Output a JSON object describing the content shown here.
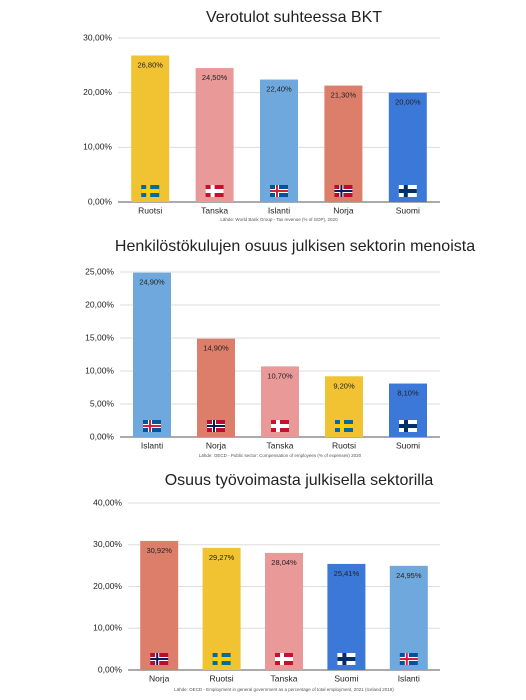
{
  "chart_data": [
    {
      "type": "bar",
      "title": "Verotulot suhteessa BKT",
      "categories": [
        "Ruotsi",
        "Tanska",
        "Islanti",
        "Norja",
        "Suomi"
      ],
      "values": [
        26.8,
        24.5,
        22.4,
        21.3,
        20.0
      ],
      "value_labels": [
        "26,80%",
        "24,50%",
        "22,40%",
        "21,30%",
        "20,00%"
      ],
      "colors": [
        "#f1c232",
        "#ea9999",
        "#6fa8dc",
        "#dd7e6b",
        "#3c78d8"
      ],
      "ylim": [
        0,
        30
      ],
      "yticks": [
        {
          "value": 0,
          "label": "0,00%"
        },
        {
          "value": 10,
          "label": "10,00%"
        },
        {
          "value": 20,
          "label": "20,00%"
        },
        {
          "value": 30,
          "label": "30,00%"
        }
      ],
      "grid": true,
      "source": "Lähde: World Bank Group - Tax revenue (% of GDP), 2020"
    },
    {
      "type": "bar",
      "title": "Henkilöstökulujen osuus julkisen sektorin menoista",
      "categories": [
        "Islanti",
        "Norja",
        "Tanska",
        "Ruotsi",
        "Suomi"
      ],
      "values": [
        24.9,
        14.9,
        10.7,
        9.2,
        8.1
      ],
      "value_labels": [
        "24,90%",
        "14,90%",
        "10,70%",
        "9,20%",
        "8,10%"
      ],
      "colors": [
        "#6fa8dc",
        "#dd7e6b",
        "#ea9999",
        "#f1c232",
        "#3c78d8"
      ],
      "ylim": [
        0,
        25
      ],
      "yticks": [
        {
          "value": 0,
          "label": "0,00%"
        },
        {
          "value": 5,
          "label": "5,00%"
        },
        {
          "value": 10,
          "label": "10,00%"
        },
        {
          "value": 15,
          "label": "15,00%"
        },
        {
          "value": 20,
          "label": "20,00%"
        },
        {
          "value": 25,
          "label": "25,00%"
        }
      ],
      "grid": true,
      "source": "Lähde: OECD - Public sector: Compensation of employees (% of expenses) 2020"
    },
    {
      "type": "bar",
      "title": "Osuus työvoimasta julkisella sektorilla",
      "categories": [
        "Norja",
        "Ruotsi",
        "Tanska",
        "Suomi",
        "Islanti"
      ],
      "values": [
        30.92,
        29.27,
        28.04,
        25.41,
        24.95
      ],
      "value_labels": [
        "30,92%",
        "29,27%",
        "28,04%",
        "25,41%",
        "24,95%"
      ],
      "colors": [
        "#dd7e6b",
        "#f1c232",
        "#ea9999",
        "#3c78d8",
        "#6fa8dc"
      ],
      "ylim": [
        0,
        40
      ],
      "yticks": [
        {
          "value": 0,
          "label": "0,00%"
        },
        {
          "value": 10,
          "label": "10,00%"
        },
        {
          "value": 20,
          "label": "20,00%"
        },
        {
          "value": 30,
          "label": "30,00%"
        },
        {
          "value": 40,
          "label": "40,00%"
        }
      ],
      "grid": true,
      "source": "Lähde: OECD - Employment in general government as a percentage of total employment, 2021 (Iceland 2019)"
    }
  ]
}
